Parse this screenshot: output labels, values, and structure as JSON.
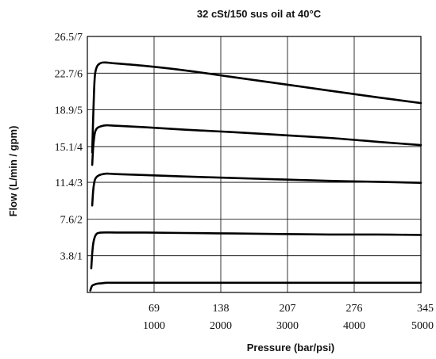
{
  "chart_data": {
    "type": "line",
    "title": "32 cSt/150 sus oil at 40°C",
    "xlabel": "Pressure (bar/psi)",
    "ylabel": "Flow (L/min / gpm)",
    "x_ticks": [
      {
        "value": 69,
        "label_bar": "69",
        "label_psi": "1000"
      },
      {
        "value": 138,
        "label_bar": "138",
        "label_psi": "2000"
      },
      {
        "value": 207,
        "label_bar": "207",
        "label_psi": "3000"
      },
      {
        "value": 276,
        "label_bar": "276",
        "label_psi": "4000"
      },
      {
        "value": 345,
        "label_bar": "345",
        "label_psi": "5000"
      }
    ],
    "y_ticks": [
      {
        "value": 3.8,
        "label": "3.8/1"
      },
      {
        "value": 7.6,
        "label": "7.6/2"
      },
      {
        "value": 11.4,
        "label": "11.4/3"
      },
      {
        "value": 15.1,
        "label": "15.1/4"
      },
      {
        "value": 18.9,
        "label": "18.9/5"
      },
      {
        "value": 22.7,
        "label": "22.7/6"
      },
      {
        "value": 26.5,
        "label": "26.5/7"
      }
    ],
    "xlim": [
      0,
      345
    ],
    "ylim": [
      0,
      26.5
    ],
    "grid": true,
    "series": [
      {
        "x": [
          3,
          4,
          5,
          7,
          10,
          15,
          20,
          30,
          60,
          100,
          150,
          200,
          250,
          300,
          345
        ],
        "y": [
          0.2,
          0.5,
          0.7,
          0.8,
          0.9,
          0.95,
          1.0,
          1.0,
          1.0,
          1.0,
          1.0,
          1.0,
          1.0,
          1.0,
          1.0
        ]
      },
      {
        "x": [
          4,
          5,
          6,
          7,
          8,
          10,
          15,
          30,
          60,
          100,
          150,
          200,
          250,
          300,
          345
        ],
        "y": [
          2.5,
          4.0,
          5.0,
          5.5,
          5.8,
          6.1,
          6.2,
          6.2,
          6.2,
          6.15,
          6.1,
          6.05,
          6.0,
          6.0,
          5.95
        ]
      },
      {
        "x": [
          5,
          6,
          7,
          8,
          10,
          14,
          20,
          30,
          60,
          100,
          150,
          200,
          250,
          300,
          345
        ],
        "y": [
          9.0,
          10.5,
          11.3,
          11.7,
          12.0,
          12.2,
          12.3,
          12.25,
          12.15,
          12.0,
          11.85,
          11.7,
          11.55,
          11.45,
          11.35
        ]
      },
      {
        "x": [
          5,
          6,
          7,
          8,
          10,
          14,
          20,
          30,
          60,
          100,
          150,
          200,
          250,
          300,
          345
        ],
        "y": [
          13.2,
          15.0,
          16.0,
          16.6,
          17.0,
          17.2,
          17.3,
          17.25,
          17.1,
          16.85,
          16.6,
          16.3,
          16.0,
          15.6,
          15.25
        ]
      },
      {
        "x": [
          5,
          6,
          7,
          8,
          10,
          13,
          16,
          20,
          30,
          60,
          100,
          150,
          200,
          250,
          300,
          345
        ],
        "y": [
          14.5,
          18.0,
          21.0,
          22.6,
          23.4,
          23.7,
          23.8,
          23.8,
          23.7,
          23.45,
          23.0,
          22.3,
          21.6,
          20.9,
          20.2,
          19.6
        ]
      }
    ]
  }
}
